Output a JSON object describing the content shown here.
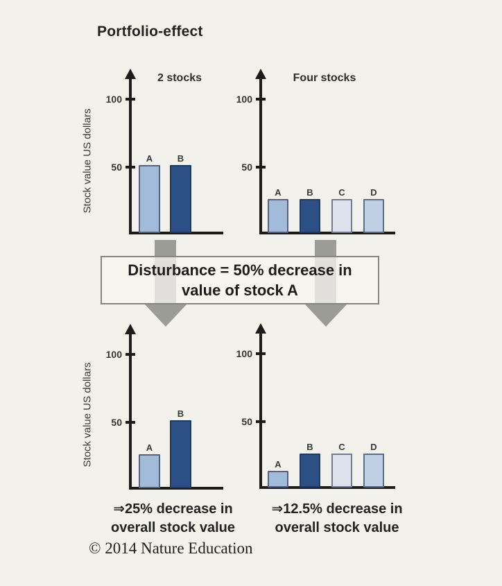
{
  "page": {
    "title": "Portfolio-effect",
    "copyright": "© 2014 Nature Education",
    "background": "#f2f1ec"
  },
  "disturbance": {
    "line1": "Disturbance = 50% decrease in",
    "line2": "value of stock A"
  },
  "annotations": {
    "left": {
      "line1": "⇒25% decrease in",
      "line2": "overall stock value"
    },
    "right": {
      "line1": "⇒12.5% decrease in",
      "line2": "overall stock value"
    }
  },
  "axis_color": "#1c1c1a",
  "arrow_color": "#9c9c97",
  "bar_styles": {
    "light": {
      "fill": "#a3bbdb",
      "border": "#53637f"
    },
    "dark": {
      "fill": "#2c5085",
      "border": "#1d3a63"
    },
    "pale": {
      "fill": "#dde2ec",
      "border": "#6f7d92"
    },
    "lighter": {
      "fill": "#c0cfe4",
      "border": "#5a6c88"
    }
  },
  "chart_data": [
    {
      "type": "bar",
      "title": "2 stocks",
      "ylabel": "Stock value US dollars",
      "yticks": [
        50,
        100
      ],
      "ylim": [
        0,
        120
      ],
      "grid": false,
      "legend": "none",
      "categories": [
        "A",
        "B"
      ],
      "values": [
        50,
        50
      ],
      "bar_colors": [
        "light",
        "dark"
      ]
    },
    {
      "type": "bar",
      "title": "Four stocks",
      "ylabel": "",
      "yticks": [
        50,
        100
      ],
      "ylim": [
        0,
        120
      ],
      "grid": false,
      "legend": "none",
      "categories": [
        "A",
        "B",
        "C",
        "D"
      ],
      "values": [
        25,
        25,
        25,
        25
      ],
      "bar_colors": [
        "light",
        "dark",
        "pale",
        "lighter"
      ]
    },
    {
      "type": "bar",
      "title": "",
      "ylabel": "Stock value US dollars",
      "yticks": [
        50,
        100
      ],
      "ylim": [
        0,
        120
      ],
      "grid": false,
      "legend": "none",
      "categories": [
        "A",
        "B"
      ],
      "values": [
        25,
        50
      ],
      "bar_colors": [
        "light",
        "dark"
      ]
    },
    {
      "type": "bar",
      "title": "",
      "ylabel": "",
      "yticks": [
        50,
        100
      ],
      "ylim": [
        0,
        120
      ],
      "grid": false,
      "legend": "none",
      "categories": [
        "A",
        "B",
        "C",
        "D"
      ],
      "values": [
        12.5,
        25,
        25,
        25
      ],
      "bar_colors": [
        "light",
        "dark",
        "pale",
        "lighter"
      ]
    }
  ]
}
